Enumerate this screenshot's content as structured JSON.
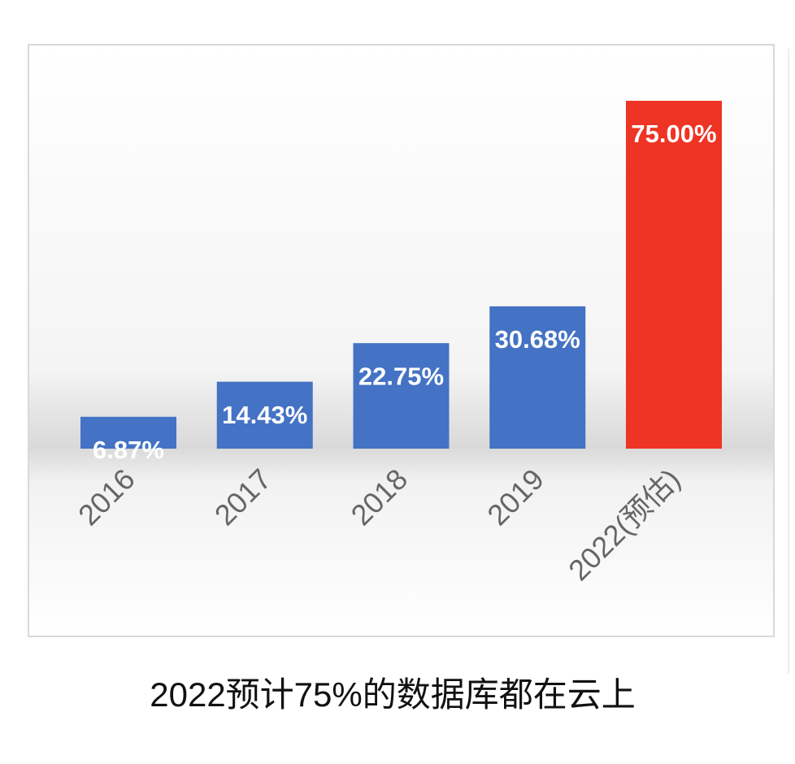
{
  "chart_data": {
    "type": "bar",
    "caption": "2022预计75%的数据库都在云上",
    "categories": [
      "2016",
      "2017",
      "2018",
      "2019",
      "2022(预估)"
    ],
    "values": [
      6.87,
      14.43,
      22.75,
      30.68,
      75.0
    ],
    "value_labels": [
      "6.87%",
      "14.43%",
      "22.75%",
      "30.68%",
      "75.00%"
    ],
    "colors": [
      "#4472c4",
      "#4472c4",
      "#4472c4",
      "#4472c4",
      "#ee3424"
    ]
  }
}
